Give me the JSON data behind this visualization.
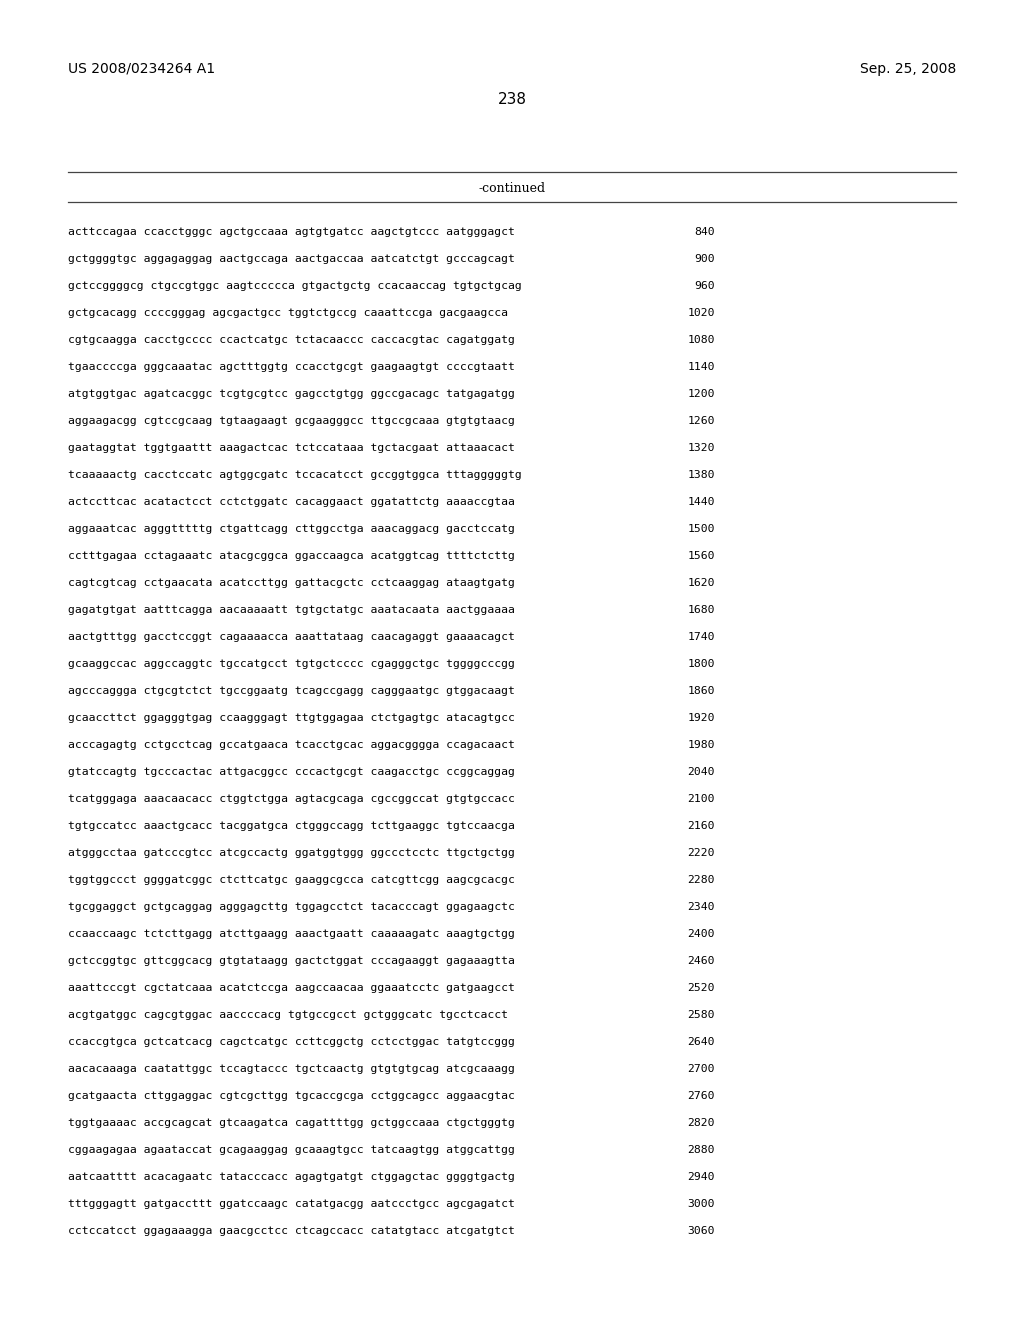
{
  "header_left": "US 2008/0234264 A1",
  "header_right": "Sep. 25, 2008",
  "page_number": "238",
  "continued_label": "-continued",
  "background_color": "#ffffff",
  "text_color": "#000000",
  "sequence_lines": [
    [
      "acttccagaa",
      "ccacctgggc",
      "agctgccaaa",
      "agtgtgatcc",
      "aagctgtccc",
      "aatgggagct",
      "840"
    ],
    [
      "gctggggtgc",
      "aggagaggag",
      "aactgccaga",
      "aactgaccaa",
      "aatcatctgt",
      "gcccagcagt",
      "900"
    ],
    [
      "gctccggggcg",
      "ctgccgtggc",
      "aagtccccca",
      "gtgactgctg",
      "ccacaaccag",
      "tgtgctgcag",
      "960"
    ],
    [
      "gctgcacagg",
      "ccccgggag",
      "agcgactgcc",
      "tggtctgccg",
      "caaattccga",
      "gacgaagcca",
      "1020"
    ],
    [
      "cgtgcaagga",
      "cacctgcccc",
      "ccactcatgc",
      "tctacaaccc",
      "caccacgtac",
      "cagatggatg",
      "1080"
    ],
    [
      "tgaaccccga",
      "gggcaaatac",
      "agctttggtg",
      "ccacctgcgt",
      "gaagaagtgt",
      "ccccgtaatt",
      "1140"
    ],
    [
      "atgtggtgac",
      "agatcacggc",
      "tcgtgcgtcc",
      "gagcctgtgg",
      "ggccgacagc",
      "tatgagatgg",
      "1200"
    ],
    [
      "aggaagacgg",
      "cgtccgcaag",
      "tgtaagaagt",
      "gcgaagggcc",
      "ttgccgcaaa",
      "gtgtgtaacg",
      "1260"
    ],
    [
      "gaataggtat",
      "tggtgaattt",
      "aaagactcac",
      "tctccataaa",
      "tgctacgaat",
      "attaaacact",
      "1320"
    ],
    [
      "tcaaaaactg",
      "cacctccatc",
      "agtggcgatc",
      "tccacatcct",
      "gccggtggca",
      "tttagggggtg",
      "1380"
    ],
    [
      "actccttcac",
      "acatactcct",
      "cctctggatc",
      "cacaggaact",
      "ggatattctg",
      "aaaaccgtaa",
      "1440"
    ],
    [
      "aggaaatcac",
      "agggtttttg",
      "ctgattcagg",
      "cttggcctga",
      "aaacaggacg",
      "gacctccatg",
      "1500"
    ],
    [
      "cctttgagaa",
      "cctagaaatc",
      "atacgcggca",
      "ggaccaagca",
      "acatggtcag",
      "ttttctcttg",
      "1560"
    ],
    [
      "cagtcgtcag",
      "cctgaacata",
      "acatccttgg",
      "gattacgctc",
      "cctcaaggag",
      "ataagtgatg",
      "1620"
    ],
    [
      "gagatgtgat",
      "aatttcagga",
      "aacaaaaatt",
      "tgtgctatgc",
      "aaatacaata",
      "aactggaaaa",
      "1680"
    ],
    [
      "aactgtttgg",
      "gacctccggt",
      "cagaaaacca",
      "aaattataag",
      "caacagaggt",
      "gaaaacagct",
      "1740"
    ],
    [
      "gcaaggccac",
      "aggccaggtc",
      "tgccatgcct",
      "tgtgctcccc",
      "cgagggctgc",
      "tggggcccgg",
      "1800"
    ],
    [
      "agcccaggga",
      "ctgcgtctct",
      "tgccggaatg",
      "tcagccgagg",
      "cagggaatgc",
      "gtggacaagt",
      "1860"
    ],
    [
      "gcaaccttct",
      "ggagggtgag",
      "ccaagggagt",
      "ttgtggagaa",
      "ctctgagtgc",
      "atacagtgcc",
      "1920"
    ],
    [
      "acccagagtg",
      "cctgcctcag",
      "gccatgaaca",
      "tcacctgcac",
      "aggacgggga",
      "ccagacaact",
      "1980"
    ],
    [
      "gtatccagtg",
      "tgcccactac",
      "attgacggcc",
      "cccactgcgt",
      "caagacctgc",
      "ccggcaggag",
      "2040"
    ],
    [
      "tcatgggaga",
      "aaacaacacc",
      "ctggtctgga",
      "agtacgcaga",
      "cgccggccat",
      "gtgtgccacc",
      "2100"
    ],
    [
      "tgtgccatcc",
      "aaactgcacc",
      "tacggatgca",
      "ctgggccagg",
      "tcttgaaggc",
      "tgtccaacga",
      "2160"
    ],
    [
      "atgggcctaa",
      "gatcccgtcc",
      "atcgccactg",
      "ggatggtggg",
      "ggccctcctc",
      "ttgctgctgg",
      "2220"
    ],
    [
      "tggtggccct",
      "ggggatcggc",
      "ctcttcatgc",
      "gaaggcgcca",
      "catcgttcgg",
      "aagcgcacgc",
      "2280"
    ],
    [
      "tgcggaggct",
      "gctgcaggag",
      "agggagcttg",
      "tggagcctct",
      "tacacccagt",
      "ggagaagctc",
      "2340"
    ],
    [
      "ccaaccaagc",
      "tctcttgagg",
      "atcttgaagg",
      "aaactgaatt",
      "caaaaagatc",
      "aaagtgctgg",
      "2400"
    ],
    [
      "gctccggtgc",
      "gttcggcacg",
      "gtgtataagg",
      "gactctggat",
      "cccagaaggt",
      "gagaaagtta",
      "2460"
    ],
    [
      "aaattcccgt",
      "cgctatcaaa",
      "acatctccga",
      "aagccaacaa",
      "ggaaatcctc",
      "gatgaagcct",
      "2520"
    ],
    [
      "acgtgatggc",
      "cagcgtggac",
      "aaccccacg",
      "tgtgccgcct",
      "gctgggcatc",
      "tgcctcacct",
      "2580"
    ],
    [
      "ccaccgtgca",
      "gctcatcacg",
      "cagctcatgc",
      "ccttcggctg",
      "cctcctggac",
      "tatgtccggg",
      "2640"
    ],
    [
      "aacacaaaga",
      "caatattggc",
      "tccagtaccc",
      "tgctcaactg",
      "gtgtgtgcag",
      "atcgcaaagg",
      "2700"
    ],
    [
      "gcatgaacta",
      "cttggaggac",
      "cgtcgcttgg",
      "tgcaccgcga",
      "cctggcagcc",
      "aggaacgtac",
      "2760"
    ],
    [
      "tggtgaaaac",
      "accgcagcat",
      "gtcaagatca",
      "cagattttgg",
      "gctggccaaa",
      "ctgctgggtg",
      "2820"
    ],
    [
      "cggaagagaa",
      "agaataccat",
      "gcagaaggag",
      "gcaaagtgcc",
      "tatcaagtgg",
      "atggcattgg",
      "2880"
    ],
    [
      "aatcaatttt",
      "acacagaatc",
      "tatacccacc",
      "agagtgatgt",
      "ctggagctac",
      "ggggtgactg",
      "2940"
    ],
    [
      "tttgggagtt",
      "gatgaccttt",
      "ggatccaagc",
      "catatgacgg",
      "aatccctgcc",
      "agcgagatct",
      "3000"
    ],
    [
      "cctccatcct",
      "ggagaaagga",
      "gaacgcctcc",
      "ctcagccacc",
      "catatgtacc",
      "atcgatgtct",
      "3060"
    ]
  ]
}
